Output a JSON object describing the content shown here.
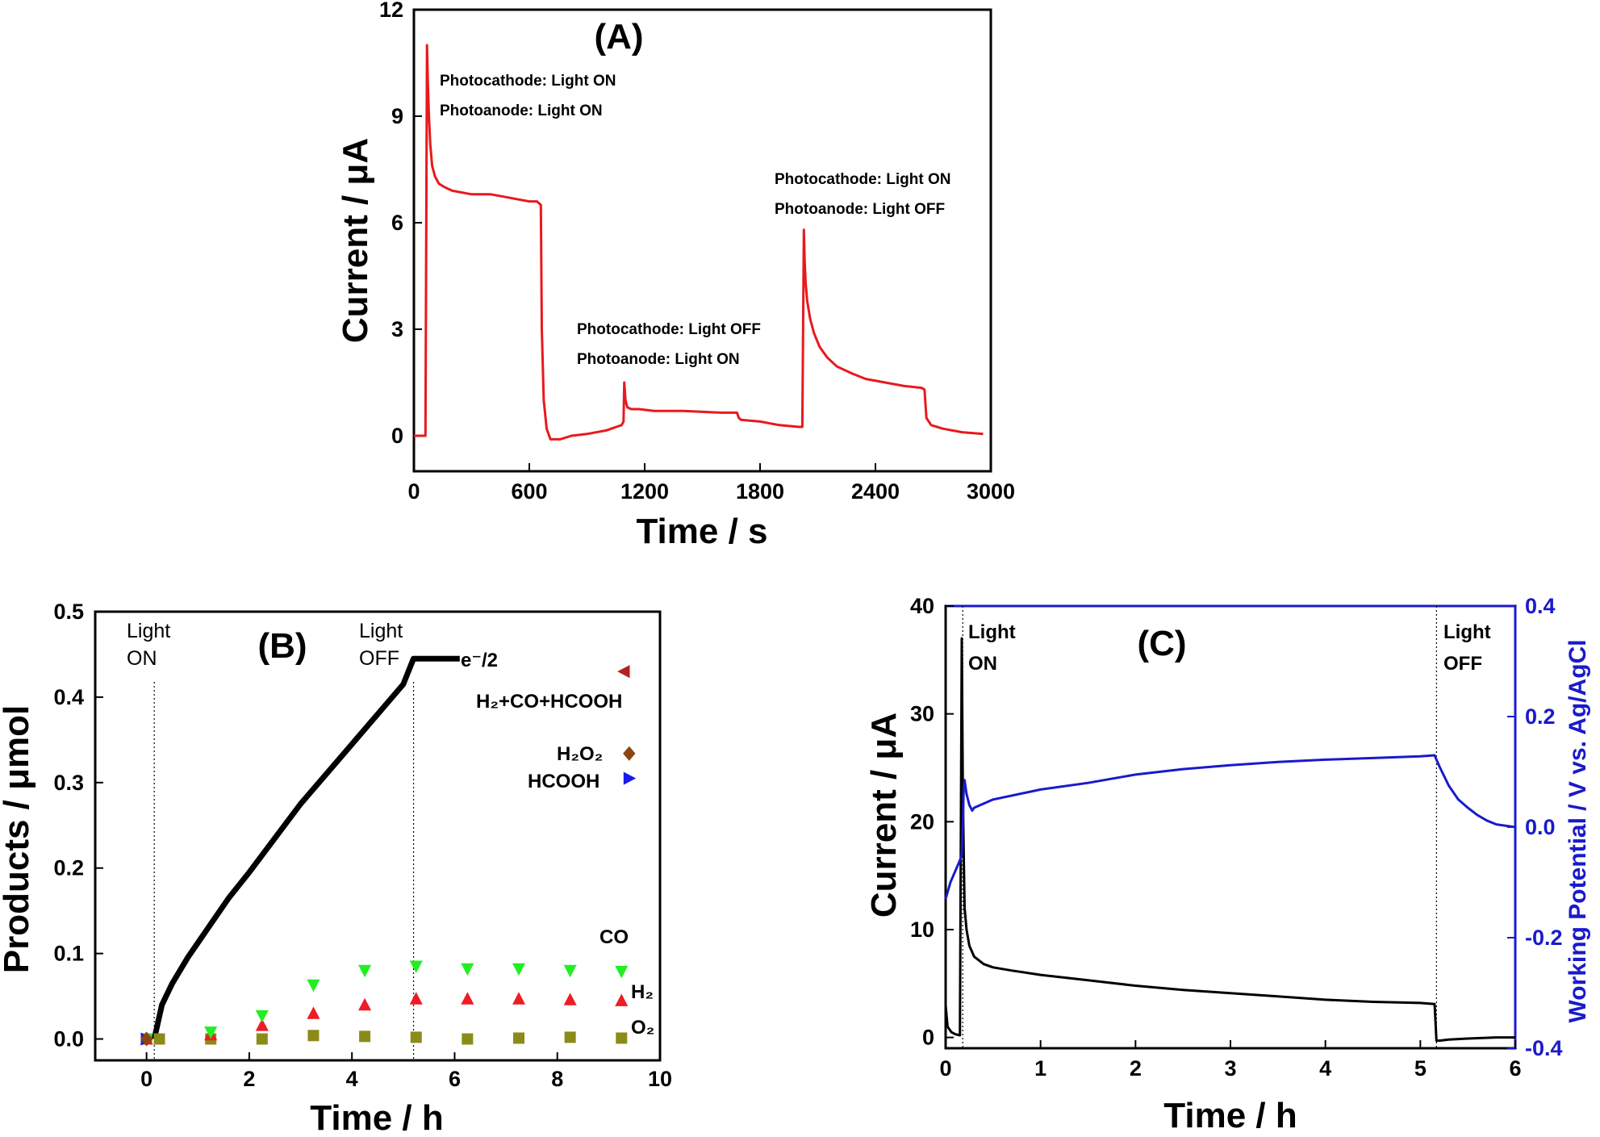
{
  "chart_data": [
    {
      "type": "line",
      "panel_label": "(A)",
      "xlabel": "Time / s",
      "ylabel": "Current / μA",
      "xlim": [
        0,
        3000
      ],
      "ylim": [
        -1,
        12
      ],
      "xticks": [
        "0",
        "600",
        "1200",
        "1800",
        "2400",
        "3000"
      ],
      "yticks": [
        "0",
        "3",
        "6",
        "9",
        "12"
      ],
      "colors": {
        "series": "#e8191d"
      },
      "series": [
        {
          "x": [
            0,
            60,
            68,
            72,
            78,
            85,
            95,
            110,
            130,
            160,
            200,
            300,
            400,
            500,
            600,
            640,
            660,
            665,
            675,
            690,
            710,
            760,
            820,
            900,
            1000,
            1080,
            1090,
            1094,
            1100,
            1110,
            1130,
            1170,
            1250,
            1400,
            1600,
            1680,
            1690,
            1700,
            1800,
            1900,
            2000,
            2020,
            2028,
            2032,
            2037,
            2045,
            2060,
            2080,
            2110,
            2150,
            2200,
            2280,
            2350,
            2450,
            2550,
            2640,
            2655,
            2665,
            2690,
            2750,
            2850,
            2960
          ],
          "y": [
            0.0,
            0.0,
            11.0,
            10.0,
            9.0,
            8.2,
            7.6,
            7.3,
            7.1,
            7.0,
            6.9,
            6.8,
            6.8,
            6.7,
            6.6,
            6.6,
            6.5,
            3.0,
            1.0,
            0.2,
            -0.1,
            -0.1,
            0.0,
            0.05,
            0.15,
            0.3,
            0.4,
            1.5,
            1.0,
            0.8,
            0.75,
            0.75,
            0.7,
            0.7,
            0.65,
            0.65,
            0.5,
            0.45,
            0.4,
            0.3,
            0.25,
            0.25,
            5.8,
            4.9,
            4.3,
            3.8,
            3.3,
            2.9,
            2.5,
            2.2,
            1.95,
            1.75,
            1.6,
            1.5,
            1.4,
            1.35,
            1.3,
            0.5,
            0.3,
            0.2,
            0.1,
            0.05
          ]
        }
      ],
      "annotations": [
        "Photocathode: Light ON",
        "Photoanode: Light ON",
        "Photocathode: Light OFF",
        "Photoanode: Light ON",
        "Photocathode: Light ON",
        "Photoanode: Light OFF"
      ]
    },
    {
      "type": "scatter",
      "panel_label": "(B)",
      "xlabel": "Time / h",
      "ylabel": "Products / μmol",
      "xlim": [
        -1,
        10
      ],
      "ylim": [
        -0.025,
        0.5
      ],
      "xticks": [
        "0",
        "2",
        "4",
        "6",
        "8",
        "10"
      ],
      "yticks": [
        "0.0",
        "0.1",
        "0.2",
        "0.3",
        "0.4",
        "0.5"
      ],
      "markers": {
        "O2": {
          "shape": "square",
          "color": "#8b8b1a"
        },
        "H2": {
          "shape": "triangle-up",
          "color": "#ee1c25"
        },
        "CO": {
          "shape": "triangle-down",
          "color": "#22ee22"
        },
        "HCOOH": {
          "shape": "triangle-right",
          "color": "#1a1aee"
        },
        "H2O2": {
          "shape": "diamond",
          "color": "#8b4513"
        },
        "Sum": {
          "shape": "triangle-left",
          "color": "#b22222"
        }
      },
      "line": {
        "name": "e⁻/2",
        "color": "#000000",
        "x": [
          0.15,
          0.3,
          0.5,
          0.8,
          1.2,
          1.6,
          2.0,
          2.5,
          3.0,
          3.5,
          4.0,
          4.5,
          5.0,
          5.2,
          5.5,
          5.8,
          6.1
        ],
        "y": [
          0.0,
          0.04,
          0.065,
          0.095,
          0.13,
          0.165,
          0.195,
          0.235,
          0.275,
          0.31,
          0.345,
          0.38,
          0.415,
          0.445,
          0.445,
          0.445,
          0.445
        ]
      },
      "series": [
        {
          "name": "O2",
          "x": [
            0,
            0.25,
            1.25,
            2.25,
            3.25,
            4.25,
            5.25,
            6.25,
            7.25,
            8.25,
            9.25
          ],
          "y": [
            0,
            0,
            0,
            0,
            0.004,
            0.003,
            0.002,
            0,
            0.001,
            0.002,
            0.001
          ]
        },
        {
          "name": "H2",
          "x": [
            0,
            1.25,
            2.25,
            3.25,
            4.25,
            5.25,
            6.25,
            7.25,
            8.25,
            9.25
          ],
          "y": [
            0,
            0.005,
            0.016,
            0.03,
            0.04,
            0.047,
            0.047,
            0.047,
            0.046,
            0.045
          ]
        },
        {
          "name": "CO",
          "x": [
            0,
            1.25,
            2.25,
            3.25,
            4.25,
            5.25,
            6.25,
            7.25,
            8.25,
            9.25
          ],
          "y": [
            0,
            0.008,
            0.027,
            0.063,
            0.08,
            0.085,
            0.082,
            0.082,
            0.08,
            0.079
          ]
        },
        {
          "name": "HCOOH",
          "x": [
            0,
            9.4
          ],
          "y": [
            0,
            0.305
          ]
        },
        {
          "name": "H2O2",
          "x": [
            0,
            9.4
          ],
          "y": [
            0,
            0.334
          ]
        },
        {
          "name": "Sum",
          "x": [
            9.3
          ],
          "y": [
            0.43
          ]
        }
      ],
      "vlines": [
        0.15,
        5.2
      ],
      "annotations": {
        "light_on": [
          "Light",
          "ON"
        ],
        "light_off": [
          "Light",
          "OFF"
        ],
        "eline": "e⁻/2",
        "sum": "H₂+CO+HCOOH",
        "h2o2": "H₂O₂",
        "hcooh": "HCOOH",
        "co": "CO",
        "h2": "H₂",
        "o2": "O₂"
      }
    },
    {
      "type": "line",
      "panel_label": "(C)",
      "xlabel": "Time / h",
      "ylabel": "Current / μA",
      "y2label": "Working Potential / V vs. Ag/AgCl",
      "xlim": [
        0,
        6
      ],
      "ylim": [
        -1,
        40
      ],
      "y2lim": [
        -0.4,
        0.4
      ],
      "xticks": [
        "0",
        "1",
        "2",
        "3",
        "4",
        "5",
        "6"
      ],
      "yticks": [
        "0",
        "10",
        "20",
        "30",
        "40"
      ],
      "y2ticks": [
        "-0.4",
        "-0.2",
        "0.0",
        "0.2",
        "0.4"
      ],
      "colors": {
        "current": "#000000",
        "potential": "#1a1acc"
      },
      "series": [
        {
          "name": "current",
          "x": [
            0,
            0.02,
            0.06,
            0.1,
            0.15,
            0.17,
            0.18,
            0.19,
            0.2,
            0.22,
            0.25,
            0.3,
            0.4,
            0.5,
            0.7,
            1.0,
            1.5,
            2.0,
            2.5,
            3.0,
            3.5,
            4.0,
            4.5,
            5.0,
            5.15,
            5.17,
            5.2,
            5.3,
            5.5,
            5.8,
            6.0
          ],
          "y": [
            3.0,
            1.0,
            0.5,
            0.3,
            0.2,
            37.0,
            24.0,
            17.0,
            12.0,
            10.0,
            8.5,
            7.5,
            6.8,
            6.5,
            6.2,
            5.8,
            5.3,
            4.8,
            4.4,
            4.1,
            3.8,
            3.5,
            3.3,
            3.2,
            3.1,
            -0.3,
            -0.3,
            -0.2,
            -0.1,
            0.0,
            0.0
          ]
        },
        {
          "name": "potential",
          "x": [
            0,
            0.05,
            0.1,
            0.15,
            0.17,
            0.18,
            0.19,
            0.2,
            0.22,
            0.25,
            0.28,
            0.3,
            0.5,
            1.0,
            1.5,
            2.0,
            2.5,
            3.0,
            3.5,
            4.0,
            4.5,
            5.0,
            5.15,
            5.2,
            5.3,
            5.4,
            5.5,
            5.6,
            5.7,
            5.8,
            6.0
          ],
          "y": [
            -0.13,
            -0.1,
            -0.08,
            -0.06,
            -0.05,
            0.0,
            0.07,
            0.085,
            0.06,
            0.04,
            0.03,
            0.035,
            0.05,
            0.068,
            0.08,
            0.095,
            0.105,
            0.112,
            0.118,
            0.122,
            0.125,
            0.128,
            0.13,
            0.11,
            0.075,
            0.05,
            0.035,
            0.022,
            0.012,
            0.005,
            0.0
          ]
        }
      ],
      "vlines": [
        0.18,
        5.17
      ],
      "annotations": {
        "light_on": [
          "Light",
          "ON"
        ],
        "light_off": [
          "Light",
          "OFF"
        ]
      }
    }
  ]
}
